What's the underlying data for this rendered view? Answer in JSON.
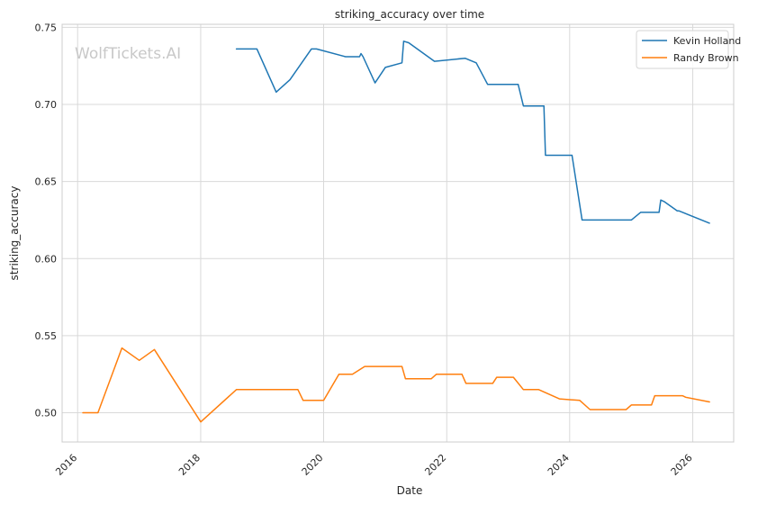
{
  "watermark": "WolfTickets.AI",
  "chart_data": {
    "type": "line",
    "title": "striking_accuracy over time",
    "xlabel": "Date",
    "ylabel": "striking_accuracy",
    "xlim": [
      "2015-10-01",
      "2026-09-01"
    ],
    "ylim": [
      0.481,
      0.752
    ],
    "x_ticks": [
      "2016",
      "2018",
      "2020",
      "2022",
      "2024",
      "2026"
    ],
    "y_ticks": [
      "0.50",
      "0.55",
      "0.60",
      "0.65",
      "0.70",
      "0.75"
    ],
    "grid": true,
    "legend_position": "top-right",
    "series": [
      {
        "name": "Kevin Holland",
        "color": "#1f77b4",
        "x": [
          "2018-08-01",
          "2018-12-01",
          "2019-03-25",
          "2019-06-15",
          "2019-10-20",
          "2019-11-20",
          "2020-05-10",
          "2020-08-01",
          "2020-08-10",
          "2020-08-22",
          "2020-11-01",
          "2021-01-01",
          "2021-04-10",
          "2021-04-20",
          "2021-05-20",
          "2021-10-20",
          "2022-04-20",
          "2022-06-25",
          "2022-09-01",
          "2023-03-01",
          "2023-04-01",
          "2023-08-01",
          "2023-08-10",
          "2024-01-15",
          "2024-03-15",
          "2024-05-15",
          "2024-12-10",
          "2025-01-01",
          "2025-02-25",
          "2025-06-15",
          "2025-06-25",
          "2025-07-15",
          "2025-10-01",
          "2025-10-10",
          "2026-04-10"
        ],
        "y": [
          0.736,
          0.736,
          0.708,
          0.716,
          0.736,
          0.736,
          0.731,
          0.731,
          0.733,
          0.731,
          0.714,
          0.724,
          0.727,
          0.741,
          0.74,
          0.728,
          0.73,
          0.727,
          0.713,
          0.713,
          0.699,
          0.699,
          0.667,
          0.667,
          0.625,
          0.625,
          0.625,
          0.625,
          0.63,
          0.63,
          0.638,
          0.637,
          0.631,
          0.631,
          0.623
        ]
      },
      {
        "name": "Randy Brown",
        "color": "#ff7f0e",
        "x": [
          "2016-02-01",
          "2016-05-01",
          "2016-09-20",
          "2017-01-01",
          "2017-04-01",
          "2018-01-01",
          "2018-08-01",
          "2019-08-01",
          "2019-09-01",
          "2020-01-01",
          "2020-04-01",
          "2020-06-20",
          "2020-09-01",
          "2021-04-10",
          "2021-05-01",
          "2021-10-01",
          "2021-11-01",
          "2022-04-01",
          "2022-04-25",
          "2022-10-01",
          "2022-10-25",
          "2023-02-01",
          "2023-04-01",
          "2023-07-01",
          "2023-11-01",
          "2024-03-01",
          "2024-05-01",
          "2024-06-01",
          "2024-12-01",
          "2025-01-01",
          "2025-05-01",
          "2025-05-20",
          "2025-11-01",
          "2025-11-20",
          "2026-04-10"
        ],
        "y": [
          0.5,
          0.5,
          0.542,
          0.534,
          0.541,
          0.494,
          0.515,
          0.515,
          0.508,
          0.508,
          0.525,
          0.525,
          0.53,
          0.53,
          0.522,
          0.522,
          0.525,
          0.525,
          0.519,
          0.519,
          0.523,
          0.523,
          0.515,
          0.515,
          0.509,
          0.508,
          0.502,
          0.502,
          0.502,
          0.505,
          0.505,
          0.511,
          0.511,
          0.51,
          0.507
        ]
      }
    ]
  }
}
